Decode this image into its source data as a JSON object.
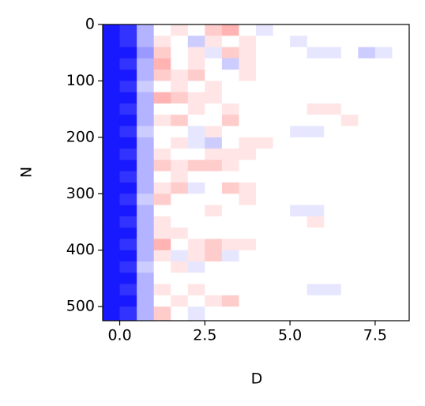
{
  "chart_data": {
    "type": "heatmap",
    "colormap": "bwr",
    "vmin": -1,
    "vmax": 1,
    "x_label": "D",
    "y_label": "N",
    "xlim": [
      -0.5,
      8.5
    ],
    "ylim": [
      525,
      0
    ],
    "xticks": [
      {
        "value": 0,
        "label": "0.0"
      },
      {
        "value": 2.5,
        "label": "2.5"
      },
      {
        "value": 5,
        "label": "5.0"
      },
      {
        "value": 7.5,
        "label": "7.5"
      }
    ],
    "yticks": [
      0,
      100,
      200,
      300,
      400,
      500
    ],
    "x": [
      -0.25,
      0.25,
      0.75,
      1.25,
      1.75,
      2.25,
      2.75,
      3.25,
      3.75,
      4.25,
      4.75,
      5.25,
      5.75,
      6.25,
      6.75,
      7.25,
      7.75,
      8.25
    ],
    "y": [
      10,
      30,
      50,
      70,
      90,
      110,
      130,
      150,
      170,
      190,
      210,
      230,
      250,
      270,
      290,
      310,
      330,
      350,
      370,
      390,
      410,
      430,
      450,
      470,
      490,
      510
    ],
    "z": [
      [
        -0.9,
        -0.8,
        -0.3,
        0,
        0.1,
        0,
        0.2,
        0.3,
        0,
        -0.1,
        0,
        0,
        0,
        0,
        0,
        0,
        0,
        0
      ],
      [
        -0.9,
        -0.8,
        -0.3,
        0.1,
        0,
        -0.2,
        0.1,
        0,
        0.1,
        0,
        0,
        -0.1,
        0,
        0,
        0,
        0,
        0,
        0
      ],
      [
        -0.9,
        -0.9,
        -0.4,
        0.2,
        0,
        0.1,
        -0.1,
        0.2,
        0.1,
        0,
        0,
        0,
        -0.1,
        -0.1,
        0,
        -0.2,
        -0.1,
        0
      ],
      [
        -0.9,
        -0.8,
        -0.3,
        0.3,
        0,
        0.1,
        0,
        -0.2,
        0.1,
        0,
        0,
        0,
        0,
        0,
        0,
        0,
        0,
        0
      ],
      [
        -0.9,
        -0.9,
        -0.3,
        0.2,
        0.1,
        0.2,
        0,
        0,
        0.1,
        0,
        0,
        0,
        0,
        0,
        0,
        0,
        0,
        0
      ],
      [
        -0.9,
        -0.8,
        -0.2,
        0,
        0.1,
        0,
        0.1,
        0,
        0,
        0,
        0,
        0,
        0,
        0,
        0,
        0,
        0,
        0
      ],
      [
        -0.9,
        -0.9,
        -0.3,
        0.3,
        0.2,
        0.1,
        0.1,
        0,
        0,
        0,
        0,
        0,
        0,
        0,
        0,
        0,
        0,
        0
      ],
      [
        -0.9,
        -0.8,
        -0.3,
        0,
        0,
        0.1,
        0,
        0.1,
        0,
        0,
        0,
        0,
        0.1,
        0.1,
        0,
        0,
        0,
        0
      ],
      [
        -0.9,
        -0.9,
        -0.3,
        0.1,
        0.2,
        0,
        0,
        0.2,
        0,
        0,
        0,
        0,
        0,
        0,
        0.1,
        0,
        0,
        0
      ],
      [
        -0.9,
        -0.8,
        -0.2,
        0,
        0,
        -0.1,
        0.1,
        0,
        0,
        0,
        0,
        -0.1,
        -0.1,
        0,
        0,
        0,
        0,
        0
      ],
      [
        -0.9,
        -0.9,
        -0.3,
        0,
        0.1,
        -0.1,
        -0.2,
        0,
        0.1,
        0.1,
        0,
        0,
        0,
        0,
        0,
        0,
        0,
        0
      ],
      [
        -0.9,
        -0.8,
        -0.3,
        0.1,
        0,
        0,
        0.1,
        0.1,
        0.1,
        0,
        0,
        0,
        0,
        0,
        0,
        0,
        0,
        0
      ],
      [
        -0.9,
        -0.9,
        -0.3,
        0.2,
        0.1,
        0.2,
        0.2,
        0.1,
        0,
        0,
        0,
        0,
        0,
        0,
        0,
        0,
        0,
        0
      ],
      [
        -0.9,
        -0.8,
        -0.3,
        0,
        0.1,
        0,
        0,
        0,
        0,
        0,
        0,
        0,
        0,
        0,
        0,
        0,
        0,
        0
      ],
      [
        -0.9,
        -0.9,
        -0.3,
        0.1,
        0.2,
        -0.1,
        0,
        0.2,
        0.1,
        0,
        0,
        0,
        0,
        0,
        0,
        0,
        0,
        0
      ],
      [
        -0.9,
        -0.8,
        -0.2,
        0.2,
        0,
        0,
        0,
        0,
        0.1,
        0,
        0,
        0,
        0,
        0,
        0,
        0,
        0,
        0
      ],
      [
        -0.9,
        -0.9,
        -0.3,
        0,
        0,
        0,
        0.1,
        0,
        0,
        0,
        0,
        -0.1,
        -0.1,
        0,
        0,
        0,
        0,
        0
      ],
      [
        -0.9,
        -0.8,
        -0.3,
        0.1,
        0,
        0,
        0,
        0,
        0,
        0,
        0,
        0,
        0.1,
        0,
        0,
        0,
        0,
        0
      ],
      [
        -0.9,
        -0.9,
        -0.3,
        0.1,
        0.1,
        0,
        0,
        0,
        0,
        0,
        0,
        0,
        0,
        0,
        0,
        0,
        0,
        0
      ],
      [
        -0.9,
        -0.8,
        -0.3,
        0.3,
        0,
        0.1,
        0.2,
        0.1,
        0.1,
        0,
        0,
        0,
        0,
        0,
        0,
        0,
        0,
        0
      ],
      [
        -0.9,
        -0.9,
        -0.3,
        0.1,
        -0.1,
        0.1,
        0.2,
        -0.1,
        0,
        0,
        0,
        0,
        0,
        0,
        0,
        0,
        0,
        0
      ],
      [
        -0.9,
        -0.8,
        -0.2,
        0,
        0.1,
        -0.1,
        0,
        0,
        0,
        0,
        0,
        0,
        0,
        0,
        0,
        0,
        0,
        0
      ],
      [
        -0.9,
        -0.9,
        -0.3,
        0,
        0,
        0,
        0,
        0,
        0,
        0,
        0,
        0,
        0,
        0,
        0,
        0,
        0,
        0
      ],
      [
        -0.9,
        -0.8,
        -0.3,
        0.1,
        0,
        0.1,
        0,
        0,
        0,
        0,
        0,
        0,
        -0.1,
        -0.1,
        0,
        0,
        0,
        0
      ],
      [
        -0.9,
        -0.9,
        -0.3,
        0,
        0.1,
        0,
        0.1,
        0.2,
        0,
        0,
        0,
        0,
        0,
        0,
        0,
        0,
        0,
        0
      ],
      [
        -0.9,
        -0.8,
        -0.3,
        0.2,
        0,
        -0.1,
        0,
        0,
        0,
        0,
        0,
        0,
        0,
        0,
        0,
        0,
        0,
        0
      ]
    ]
  }
}
